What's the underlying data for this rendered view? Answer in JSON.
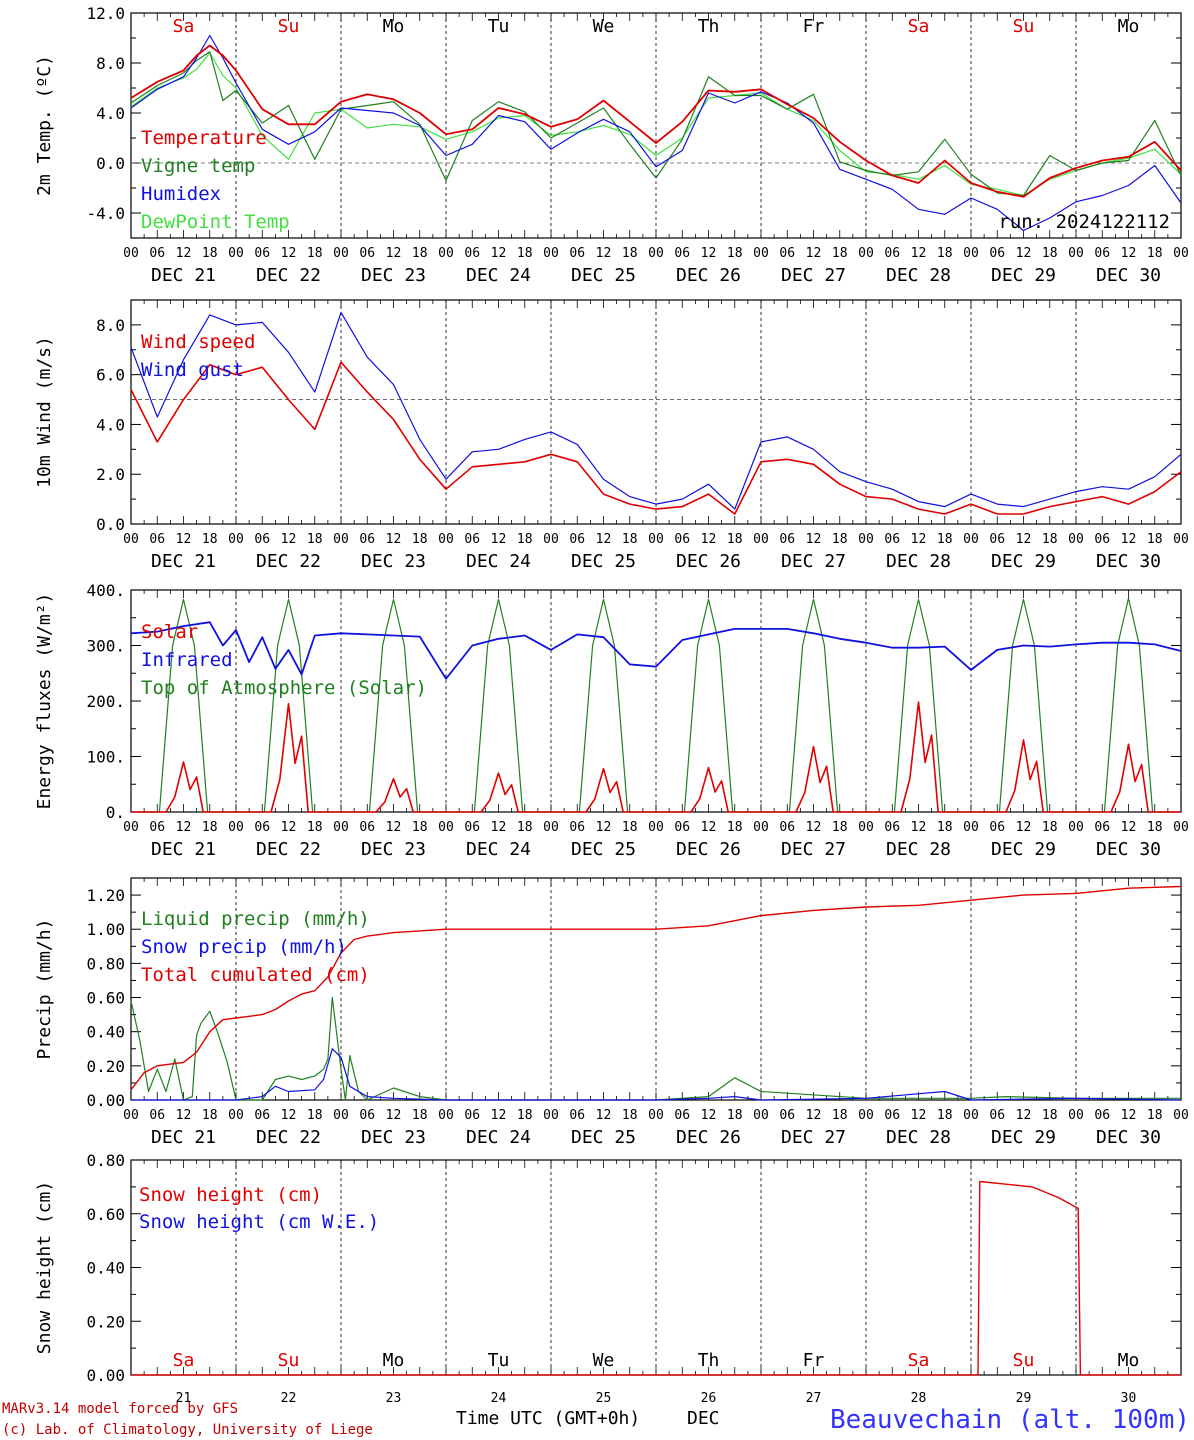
{
  "colors": {
    "red": "#e00000",
    "green": "#208020",
    "blue": "#1010e0",
    "lightgreen": "#40e040",
    "axis": "#000000",
    "sat_sun": "#e00000",
    "weekday": "#000000"
  },
  "days": {
    "weekdays": [
      "Sa",
      "Su",
      "Mo",
      "Tu",
      "We",
      "Th",
      "Fr",
      "Sa",
      "Su",
      "Mo"
    ],
    "weekday_red": [
      true,
      true,
      false,
      false,
      false,
      false,
      false,
      true,
      true,
      false
    ],
    "dates": [
      "DEC 21",
      "DEC 22",
      "DEC 23",
      "DEC 24",
      "DEC 25",
      "DEC 26",
      "DEC 27",
      "DEC 28",
      "DEC 29",
      "DEC 30"
    ],
    "day_numbers": [
      "21",
      "22",
      "23",
      "24",
      "25",
      "26",
      "27",
      "28",
      "29",
      "30"
    ],
    "hour_labels": [
      "00",
      "06",
      "12",
      "18"
    ],
    "final_hour_label": "00"
  },
  "footer": {
    "model": "MARv3.14 model forced by GFS",
    "lab": "(c) Lab. of Climatology, University of Liege",
    "xlabel": "Time UTC (GMT+0h)",
    "month": "DEC",
    "station": "Beauvechain (alt. 100m)"
  },
  "chart_data": [
    {
      "id": "temperature",
      "type": "line",
      "ylabel": "2m Temp. (ºC)",
      "ylim": [
        -6,
        12
      ],
      "yticks": [
        -4,
        0,
        4,
        8,
        12
      ],
      "ytick_labels": [
        "-4.0",
        "0.0",
        "4.0",
        "8.0",
        "12.0"
      ],
      "ref_line": 0,
      "annotation": "run: 2024122112",
      "x_hours": [
        0,
        6,
        12,
        15,
        18,
        21,
        24,
        30,
        36,
        42,
        48,
        54,
        60,
        66,
        72,
        78,
        84,
        90,
        96,
        102,
        108,
        114,
        120,
        126,
        132,
        138,
        144,
        150,
        156,
        162,
        168,
        174,
        180,
        186,
        192,
        198,
        204,
        210,
        216,
        222,
        228,
        234,
        240
      ],
      "series": [
        {
          "name": "Temperature",
          "color": "red",
          "values": [
            5.2,
            6.5,
            7.4,
            8.6,
            9.4,
            8.6,
            7.4,
            4.3,
            3.1,
            3.1,
            4.9,
            5.5,
            5.1,
            4.0,
            2.3,
            2.7,
            4.4,
            3.9,
            2.9,
            3.5,
            5.0,
            3.3,
            1.6,
            3.3,
            5.8,
            5.7,
            5.9,
            4.7,
            3.6,
            1.7,
            0.2,
            -1.0,
            -1.6,
            0.2,
            -1.6,
            -2.3,
            -2.7,
            -1.2,
            -0.4,
            0.2,
            0.5,
            1.7,
            -0.6
          ]
        },
        {
          "name": "Vigne temp",
          "color": "green",
          "values": [
            4.8,
            6.2,
            7.2,
            8.2,
            8.9,
            5.0,
            5.8,
            3.2,
            4.6,
            0.3,
            4.3,
            4.6,
            4.9,
            3.1,
            -1.4,
            3.4,
            4.9,
            4.1,
            2.0,
            3.2,
            4.4,
            1.5,
            -1.2,
            1.9,
            6.9,
            5.4,
            5.4,
            4.3,
            5.5,
            0.1,
            -0.6,
            -1.0,
            -0.7,
            1.9,
            -0.9,
            -2.4,
            -2.6,
            0.6,
            -0.6,
            0.0,
            0.2,
            3.4,
            -1.0
          ]
        },
        {
          "name": "Humidex",
          "color": "blue",
          "values": [
            4.4,
            5.9,
            6.9,
            8.4,
            10.2,
            8.4,
            6.4,
            2.7,
            1.5,
            2.5,
            4.4,
            4.2,
            4.0,
            3.0,
            0.6,
            1.5,
            3.8,
            3.3,
            1.1,
            2.4,
            3.5,
            2.5,
            -0.3,
            1.0,
            5.6,
            4.8,
            5.7,
            4.8,
            3.2,
            -0.5,
            -1.3,
            -2.1,
            -3.7,
            -4.1,
            -2.8,
            -3.7,
            -5.4,
            -4.4,
            -3.1,
            -2.6,
            -1.8,
            -0.2,
            -3.2
          ]
        },
        {
          "name": "DewPoint Temp",
          "color": "lightgreen",
          "values": [
            4.5,
            6.0,
            6.8,
            7.5,
            8.8,
            7.0,
            6.0,
            2.2,
            0.3,
            4.0,
            4.3,
            2.8,
            3.1,
            2.9,
            1.9,
            2.5,
            3.6,
            3.8,
            2.2,
            2.5,
            3.0,
            2.3,
            0.6,
            2.0,
            5.2,
            5.4,
            5.6,
            4.3,
            3.4,
            1.0,
            -0.7,
            -0.9,
            -1.3,
            -0.2,
            -1.7,
            -2.1,
            -2.6,
            -1.3,
            -0.6,
            0.0,
            0.4,
            1.1,
            -0.9
          ]
        }
      ]
    },
    {
      "id": "wind",
      "type": "line",
      "ylabel": "10m Wind (m/s)",
      "ylim": [
        0,
        9
      ],
      "yticks": [
        0,
        2,
        4,
        6,
        8
      ],
      "ytick_labels": [
        "0.0",
        "2.0",
        "4.0",
        "6.0",
        "8.0"
      ],
      "ref_line": 5,
      "x_hours": [
        0,
        6,
        12,
        18,
        24,
        30,
        36,
        42,
        48,
        54,
        60,
        66,
        72,
        78,
        84,
        90,
        96,
        102,
        108,
        114,
        120,
        126,
        132,
        138,
        144,
        150,
        156,
        162,
        168,
        174,
        180,
        186,
        192,
        198,
        204,
        210,
        216,
        222,
        228,
        234,
        240
      ],
      "series": [
        {
          "name": "Wind speed",
          "color": "red",
          "values": [
            5.4,
            3.3,
            5.0,
            6.4,
            6.0,
            6.3,
            5.0,
            3.8,
            6.5,
            5.3,
            4.2,
            2.6,
            1.4,
            2.3,
            2.4,
            2.5,
            2.8,
            2.5,
            1.2,
            0.8,
            0.6,
            0.7,
            1.2,
            0.4,
            2.5,
            2.6,
            2.4,
            1.6,
            1.1,
            1.0,
            0.6,
            0.4,
            0.8,
            0.4,
            0.4,
            0.7,
            0.9,
            1.1,
            0.8,
            1.3,
            2.1
          ]
        },
        {
          "name": "Wind gust",
          "color": "blue",
          "values": [
            7.1,
            4.3,
            6.6,
            8.4,
            8.0,
            8.1,
            6.9,
            5.3,
            8.5,
            6.7,
            5.6,
            3.4,
            1.8,
            2.9,
            3.0,
            3.4,
            3.7,
            3.2,
            1.8,
            1.1,
            0.8,
            1.0,
            1.6,
            0.6,
            3.3,
            3.5,
            3.0,
            2.1,
            1.7,
            1.4,
            0.9,
            0.7,
            1.2,
            0.8,
            0.7,
            1.0,
            1.3,
            1.5,
            1.4,
            1.9,
            2.8
          ]
        }
      ]
    },
    {
      "id": "energy",
      "type": "line",
      "ylabel": "Energy fluxes (W/m²)",
      "ylim": [
        0,
        400
      ],
      "yticks": [
        0,
        100,
        200,
        300,
        400
      ],
      "ytick_labels": [
        "0.",
        "100.",
        "200.",
        "300.",
        "400."
      ],
      "solar_peaks": [
        90,
        195,
        60,
        70,
        78,
        80,
        118,
        198,
        130,
        122
      ],
      "toa_peaks": [
        383,
        383,
        383,
        383,
        383,
        383,
        383,
        383,
        383,
        385
      ],
      "infrared": {
        "x_hours": [
          0,
          6,
          12,
          18,
          21,
          24,
          27,
          30,
          33,
          36,
          39,
          42,
          48,
          54,
          60,
          66,
          72,
          78,
          84,
          90,
          96,
          102,
          108,
          114,
          120,
          126,
          132,
          138,
          144,
          150,
          156,
          162,
          168,
          174,
          180,
          186,
          192,
          198,
          204,
          210,
          216,
          222,
          228,
          234,
          240
        ],
        "values": [
          322,
          325,
          335,
          342,
          300,
          328,
          270,
          315,
          258,
          292,
          248,
          318,
          322,
          320,
          318,
          316,
          240,
          300,
          312,
          318,
          292,
          320,
          315,
          266,
          262,
          310,
          320,
          330,
          330,
          330,
          322,
          312,
          305,
          296,
          296,
          298,
          256,
          292,
          300,
          298,
          302,
          305,
          305,
          302,
          290
        ]
      },
      "series": [
        {
          "name": "Solar",
          "color": "red"
        },
        {
          "name": "Infrared",
          "color": "blue"
        },
        {
          "name": "Top of Atmosphere (Solar)",
          "color": "green"
        }
      ]
    },
    {
      "id": "precip",
      "type": "line",
      "ylabel": "Precip (mm/h)",
      "ylim": [
        0,
        1.3
      ],
      "yticks": [
        0,
        0.2,
        0.4,
        0.6,
        0.8,
        1.0,
        1.2
      ],
      "ytick_labels": [
        "0.00",
        "0.20",
        "0.40",
        "0.60",
        "0.80",
        "1.00",
        "1.20"
      ],
      "liquid": {
        "x_hours": [
          0,
          2,
          4,
          6,
          8,
          10,
          12,
          14,
          15,
          16,
          18,
          20,
          22,
          24,
          30,
          33,
          36,
          39,
          42,
          44,
          45,
          46,
          48,
          49,
          50,
          52,
          54,
          60,
          66,
          72,
          96,
          120,
          132,
          138,
          144,
          150,
          168,
          192,
          200,
          216,
          240
        ],
        "values": [
          0.58,
          0.35,
          0.05,
          0.18,
          0.05,
          0.24,
          0.0,
          0.02,
          0.38,
          0.45,
          0.52,
          0.38,
          0.22,
          0.0,
          0.0,
          0.12,
          0.14,
          0.12,
          0.14,
          0.18,
          0.24,
          0.6,
          0.18,
          0.0,
          0.26,
          0.05,
          0.0,
          0.07,
          0.02,
          0.0,
          0.0,
          0.0,
          0.02,
          0.13,
          0.05,
          0.04,
          0.01,
          0.01,
          0.02,
          0.01,
          0.01
        ]
      },
      "snow": {
        "x_hours": [
          0,
          24,
          30,
          33,
          36,
          42,
          44,
          46,
          48,
          50,
          54,
          60,
          72,
          96,
          120,
          132,
          138,
          144,
          168,
          186,
          192,
          216,
          240
        ],
        "values": [
          0.0,
          0.0,
          0.02,
          0.08,
          0.05,
          0.06,
          0.12,
          0.3,
          0.25,
          0.08,
          0.02,
          0.01,
          0.0,
          0.0,
          0.0,
          0.01,
          0.02,
          0.0,
          0.01,
          0.05,
          0.0,
          0.01,
          0.0
        ]
      },
      "total": {
        "x_hours": [
          0,
          3,
          6,
          9,
          12,
          15,
          18,
          21,
          24,
          30,
          33,
          36,
          39,
          42,
          45,
          48,
          51,
          54,
          57,
          60,
          66,
          72,
          96,
          120,
          132,
          144,
          156,
          168,
          180,
          192,
          204,
          216,
          228,
          240
        ],
        "values": [
          0.06,
          0.16,
          0.2,
          0.21,
          0.22,
          0.28,
          0.4,
          0.47,
          0.48,
          0.5,
          0.53,
          0.58,
          0.62,
          0.64,
          0.72,
          0.86,
          0.94,
          0.96,
          0.97,
          0.98,
          0.99,
          1.0,
          1.0,
          1.0,
          1.02,
          1.08,
          1.11,
          1.13,
          1.14,
          1.17,
          1.2,
          1.21,
          1.24,
          1.25
        ]
      },
      "series": [
        {
          "name": "Liquid precip (mm/h)",
          "color": "green"
        },
        {
          "name": "Snow precip (mm/h)",
          "color": "blue"
        },
        {
          "name": "Total cumulated (cm)",
          "color": "red"
        }
      ]
    },
    {
      "id": "snow",
      "type": "line",
      "ylabel": "Snow height (cm)",
      "ylim": [
        0,
        0.8
      ],
      "yticks": [
        0,
        0.2,
        0.4,
        0.6,
        0.8
      ],
      "ytick_labels": [
        "0.00",
        "0.20",
        "0.40",
        "0.60",
        "0.80"
      ],
      "height_cm": {
        "x_hours": [
          0,
          193.6,
          194,
          200,
          206,
          212,
          216.5,
          217,
          240
        ],
        "values": [
          0,
          0,
          0.72,
          0.71,
          0.7,
          0.66,
          0.62,
          0,
          0
        ]
      },
      "series": [
        {
          "name": "Snow height (cm)",
          "color": "red"
        },
        {
          "name": "Snow height (cm W.E.)",
          "color": "blue"
        }
      ]
    }
  ]
}
